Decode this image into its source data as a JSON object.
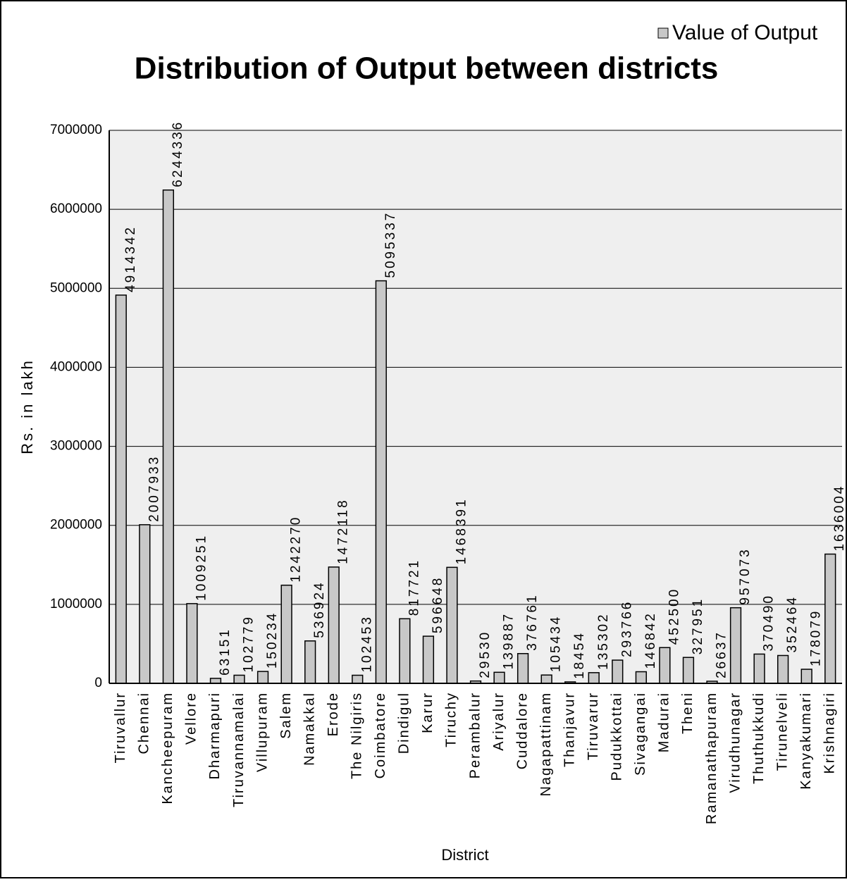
{
  "chart_data": {
    "type": "bar",
    "title": "Distribution of  Output between districts",
    "x_label": "District",
    "y_label": "Rs. in lakh",
    "categories": [
      "Tiruvallur",
      "Chennai",
      "Kancheepuram",
      "Vellore",
      "Dharmapuri",
      "Tiruvannamalai",
      "Villupuram",
      "Salem",
      "Namakkal",
      "Erode",
      "The Nilgiris",
      "Coimbatore",
      "Dindigul",
      "Karur",
      "Tiruchy",
      "Perambalur",
      "Ariyalur",
      "Cuddalore",
      "Nagapattinam",
      "Thanjavur",
      "Tiruvarur",
      "Pudukkottai",
      "Sivagangai",
      "Madurai",
      "Theni",
      "Ramanathapuram",
      "Virudhunagar",
      "Thuthukkudi",
      "Tirunelveli",
      "Kanyakumari",
      "Krishnagiri"
    ],
    "series": [
      {
        "name": "Value of Output",
        "color": "#c8c8c8",
        "values": [
          4914342,
          2007933,
          6244336,
          1009251,
          63151,
          102779,
          150234,
          1242270,
          536924,
          1472118,
          102453,
          5095337,
          817721,
          596648,
          1468391,
          29530,
          139887,
          376761,
          105434,
          18454,
          135302,
          293766,
          146842,
          452500,
          327951,
          26637,
          957073,
          370490,
          352464,
          178079,
          1636004
        ]
      }
    ],
    "ylim": [
      0,
      7000000
    ],
    "yticks": [
      0,
      1000000,
      2000000,
      3000000,
      4000000,
      5000000,
      6000000,
      7000000
    ],
    "grid": true,
    "legend": "top-right"
  }
}
